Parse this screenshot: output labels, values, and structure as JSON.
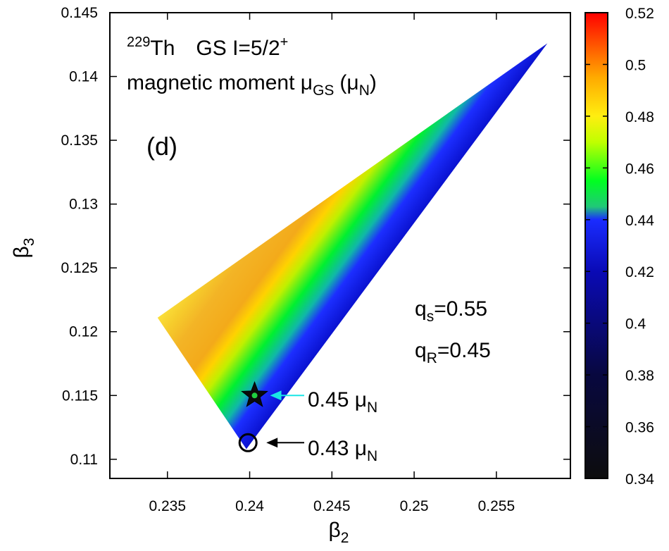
{
  "chart_data": {
    "type": "heatmap",
    "title_nucleus_mass": "229",
    "title_nucleus": "Th",
    "title_state": "GS  I=5/2",
    "title_parity": "+",
    "title_quantity": "magnetic moment μ",
    "title_quantity_sub": "GS",
    "title_unit": "(μ",
    "title_unit_sub": "N",
    "title_unit_close": ")",
    "panel_label": "(d)",
    "xlabel": "β",
    "xlabel_sub": "2",
    "ylabel": "β",
    "ylabel_sub": "3",
    "xlim": [
      0.2315,
      0.2595
    ],
    "ylim": [
      0.1085,
      0.145
    ],
    "x_ticks": [
      0.235,
      0.24,
      0.245,
      0.25,
      0.255
    ],
    "x_tick_labels": [
      "0.235",
      "0.24",
      "0.245",
      "0.25",
      "0.255"
    ],
    "y_ticks": [
      0.11,
      0.115,
      0.12,
      0.125,
      0.13,
      0.135,
      0.14,
      0.145
    ],
    "y_tick_labels": [
      "0.11",
      "0.115",
      "0.12",
      "0.125",
      "0.13",
      "0.135",
      "0.14",
      "0.145"
    ],
    "colorbar": {
      "range": [
        0.34,
        0.52
      ],
      "ticks": [
        0.34,
        0.36,
        0.38,
        0.4,
        0.42,
        0.44,
        0.46,
        0.48,
        0.5,
        0.52
      ],
      "tick_labels": [
        "0.34",
        "0.36",
        "0.38",
        "0.4",
        "0.42",
        "0.44",
        "0.46",
        "0.48",
        "0.5",
        "0.52"
      ],
      "stops": [
        {
          "v": 0.34,
          "color": "#0d0d0d"
        },
        {
          "v": 0.38,
          "color": "#08083f"
        },
        {
          "v": 0.42,
          "color": "#0a0ab5"
        },
        {
          "v": 0.44,
          "color": "#1a2cff"
        },
        {
          "v": 0.445,
          "color": "#20c878"
        },
        {
          "v": 0.455,
          "color": "#00ff20"
        },
        {
          "v": 0.47,
          "color": "#c0ff00"
        },
        {
          "v": 0.48,
          "color": "#ffee10"
        },
        {
          "v": 0.495,
          "color": "#ffaa00"
        },
        {
          "v": 0.52,
          "color": "#ff0000"
        }
      ]
    },
    "region_polygon": [
      {
        "b2": 0.2344,
        "b3": 0.1211
      },
      {
        "b2": 0.2398,
        "b3": 0.1108
      },
      {
        "b2": 0.2581,
        "b3": 0.1426
      }
    ],
    "region_description": "Allowed deformation region colored by μ_GS; blue (~0.43) along the lower-right edge, green band (~0.45), yellow-orange (~0.47–0.49) across the upper-left.",
    "params": [
      {
        "label": "q",
        "sub": "s",
        "value": "=0.55"
      },
      {
        "label": "q",
        "sub": "R",
        "value": "=0.45"
      }
    ],
    "markers": [
      {
        "name": "star",
        "b2": 0.2403,
        "b3": 0.115,
        "value_text": "0.45 μ",
        "value_sub": "N",
        "arrow_color": "#19e6e6"
      },
      {
        "name": "circle",
        "b2": 0.2399,
        "b3": 0.1113,
        "value_text": "0.43 μ",
        "value_sub": "N",
        "arrow_color": "#000000"
      }
    ]
  }
}
